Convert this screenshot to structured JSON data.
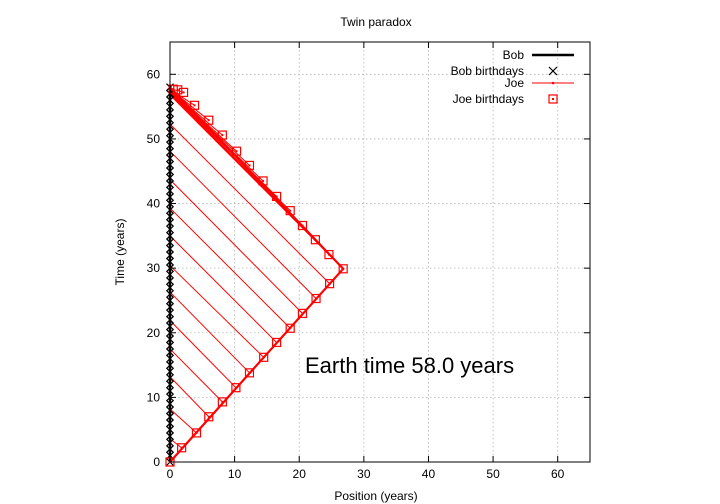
{
  "chart_data": {
    "type": "line",
    "title": "Twin paradox",
    "xlabel": "Position (years)",
    "ylabel": "Time (years)",
    "xlim": [
      0,
      65
    ],
    "ylim": [
      0,
      65
    ],
    "x_ticks": [
      0,
      10,
      20,
      30,
      40,
      50,
      60
    ],
    "y_ticks": [
      0,
      10,
      20,
      30,
      40,
      50,
      60
    ],
    "grid": true,
    "legend_position": "top-right",
    "annotation": "Earth time 58.0 years",
    "colors": {
      "bob": "#000000",
      "joe": "#ff0000"
    },
    "series": [
      {
        "name": "Bob",
        "style": "thick-line",
        "points": [
          [
            0,
            0
          ],
          [
            0,
            58
          ]
        ]
      },
      {
        "name": "Bob birthdays",
        "style": "x-marker",
        "x": 0,
        "t_start": 0,
        "t_end": 58,
        "t_step": 1
      },
      {
        "name": "Joe",
        "style": "line",
        "points": [
          [
            0,
            0
          ],
          [
            26.8,
            29.9
          ],
          [
            0,
            58
          ]
        ]
      },
      {
        "name": "Joe birthdays",
        "style": "square-marker",
        "points": [
          [
            0,
            0
          ],
          [
            1.8,
            2.2
          ],
          [
            4.1,
            4.5
          ],
          [
            6.0,
            7.0
          ],
          [
            8.1,
            9.3
          ],
          [
            10.2,
            11.5
          ],
          [
            12.3,
            13.8
          ],
          [
            14.5,
            16.2
          ],
          [
            16.5,
            18.5
          ],
          [
            18.6,
            20.7
          ],
          [
            20.5,
            23.0
          ],
          [
            22.6,
            25.3
          ],
          [
            24.7,
            27.6
          ],
          [
            26.8,
            29.9
          ],
          [
            24.6,
            32.1
          ],
          [
            22.5,
            34.4
          ],
          [
            20.5,
            36.6
          ],
          [
            18.6,
            38.9
          ],
          [
            16.5,
            41.1
          ],
          [
            14.4,
            43.5
          ],
          [
            12.3,
            45.9
          ],
          [
            10.3,
            48.1
          ],
          [
            8.1,
            50.6
          ],
          [
            6.0,
            52.9
          ],
          [
            3.8,
            55.2
          ],
          [
            2.1,
            57.2
          ],
          [
            1.2,
            57.6
          ],
          [
            0.5,
            57.7
          ]
        ]
      }
    ],
    "light_signals": {
      "style": "thin-red-line",
      "segments": [
        [
          [
            0,
            3.6
          ],
          [
            1.8,
            2.2
          ]
        ],
        [
          [
            0,
            8.2
          ],
          [
            4.1,
            4.5
          ]
        ],
        [
          [
            0,
            13.2
          ],
          [
            6.0,
            7.0
          ]
        ],
        [
          [
            0,
            17.5
          ],
          [
            8.1,
            9.3
          ]
        ],
        [
          [
            0,
            21.9
          ],
          [
            10.2,
            11.5
          ]
        ],
        [
          [
            0,
            26.3
          ],
          [
            12.3,
            13.8
          ]
        ],
        [
          [
            0,
            30.4
          ],
          [
            14.5,
            16.2
          ]
        ],
        [
          [
            0,
            35.0
          ],
          [
            16.5,
            18.5
          ]
        ],
        [
          [
            0,
            39.3
          ],
          [
            18.6,
            20.7
          ]
        ],
        [
          [
            0,
            43.7
          ],
          [
            20.5,
            23.0
          ]
        ],
        [
          [
            0,
            48.1
          ],
          [
            22.6,
            25.3
          ]
        ],
        [
          [
            0,
            52.3
          ],
          [
            24.7,
            27.6
          ]
        ],
        [
          [
            0,
            56.8
          ],
          [
            26.8,
            29.9
          ]
        ],
        [
          [
            0,
            57.0
          ],
          [
            24.6,
            32.1
          ]
        ],
        [
          [
            0,
            57.0
          ],
          [
            22.5,
            34.4
          ]
        ],
        [
          [
            0,
            57.1
          ],
          [
            20.5,
            36.6
          ]
        ],
        [
          [
            0,
            57.2
          ],
          [
            18.6,
            38.9
          ]
        ],
        [
          [
            0,
            57.3
          ],
          [
            16.5,
            41.1
          ]
        ],
        [
          [
            0,
            57.4
          ],
          [
            14.4,
            43.5
          ]
        ],
        [
          [
            0,
            57.5
          ],
          [
            12.3,
            45.9
          ]
        ],
        [
          [
            0,
            57.6
          ],
          [
            10.3,
            48.1
          ]
        ],
        [
          [
            0,
            57.6
          ],
          [
            8.1,
            50.6
          ]
        ],
        [
          [
            0,
            57.7
          ],
          [
            6.0,
            52.9
          ]
        ],
        [
          [
            0,
            57.7
          ],
          [
            3.8,
            55.2
          ]
        ],
        [
          [
            0,
            57.8
          ],
          [
            2.1,
            57.2
          ]
        ]
      ]
    }
  }
}
